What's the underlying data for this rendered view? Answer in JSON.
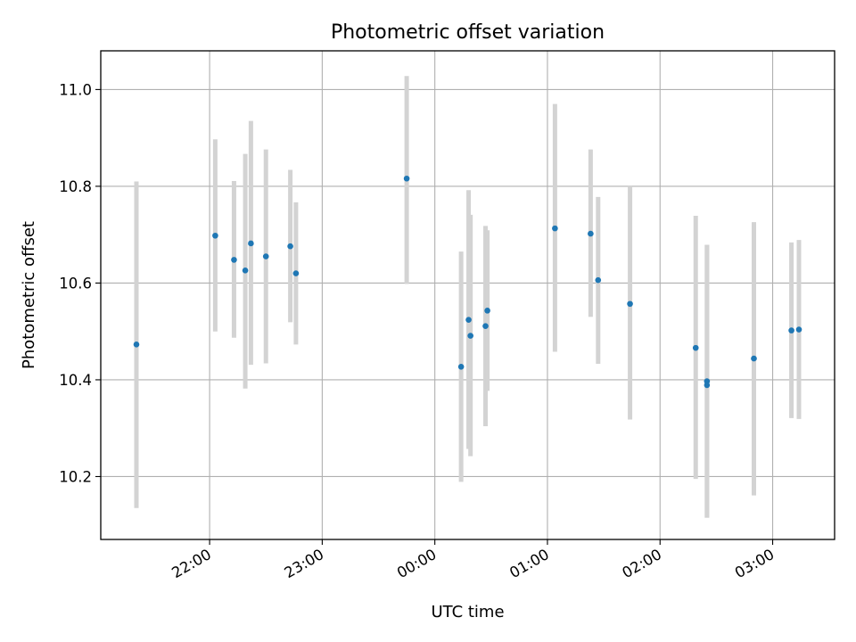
{
  "chart_data": {
    "type": "scatter",
    "title": "Photometric offset variation",
    "xlabel": "UTC time",
    "ylabel": "Photometric offset",
    "x_axis_kind": "time",
    "xlim": [
      "21:02",
      "03:33"
    ],
    "ylim": [
      10.07,
      11.08
    ],
    "x_ticks": [
      "22:00",
      "23:00",
      "00:00",
      "01:00",
      "02:00",
      "03:00"
    ],
    "y_ticks": [
      10.2,
      10.4,
      10.6,
      10.8,
      11.0
    ],
    "y_tick_labels": [
      "10.2",
      "10.4",
      "10.6",
      "10.8",
      "11.0"
    ],
    "grid": true,
    "series": [
      {
        "color": "#1f77b4",
        "errorbar_color": "#d3d3d3",
        "points": [
          {
            "x": "21:21",
            "y": 10.473,
            "ylow": 10.135,
            "yhigh": 10.81
          },
          {
            "x": "22:03",
            "y": 10.698,
            "ylow": 10.5,
            "yhigh": 10.897
          },
          {
            "x": "22:13",
            "y": 10.648,
            "ylow": 10.487,
            "yhigh": 10.811
          },
          {
            "x": "22:19",
            "y": 10.626,
            "ylow": 10.382,
            "yhigh": 10.867
          },
          {
            "x": "22:22",
            "y": 10.682,
            "ylow": 10.431,
            "yhigh": 10.935
          },
          {
            "x": "22:30",
            "y": 10.655,
            "ylow": 10.434,
            "yhigh": 10.876
          },
          {
            "x": "22:43",
            "y": 10.676,
            "ylow": 10.519,
            "yhigh": 10.834
          },
          {
            "x": "22:46",
            "y": 10.62,
            "ylow": 10.473,
            "yhigh": 10.767
          },
          {
            "x": "23:45",
            "y": 10.816,
            "ylow": 10.598,
            "yhigh": 11.028
          },
          {
            "x": "00:14",
            "y": 10.427,
            "ylow": 10.189,
            "yhigh": 10.665
          },
          {
            "x": "00:18",
            "y": 10.524,
            "ylow": 10.257,
            "yhigh": 10.792
          },
          {
            "x": "00:19",
            "y": 10.491,
            "ylow": 10.242,
            "yhigh": 10.741
          },
          {
            "x": "00:27",
            "y": 10.511,
            "ylow": 10.304,
            "yhigh": 10.718
          },
          {
            "x": "00:28",
            "y": 10.543,
            "ylow": 10.377,
            "yhigh": 10.709
          },
          {
            "x": "01:04",
            "y": 10.713,
            "ylow": 10.458,
            "yhigh": 10.97
          },
          {
            "x": "01:23",
            "y": 10.702,
            "ylow": 10.53,
            "yhigh": 10.876
          },
          {
            "x": "01:27",
            "y": 10.606,
            "ylow": 10.433,
            "yhigh": 10.778
          },
          {
            "x": "01:44",
            "y": 10.557,
            "ylow": 10.318,
            "yhigh": 10.8
          },
          {
            "x": "02:19",
            "y": 10.466,
            "ylow": 10.195,
            "yhigh": 10.739
          },
          {
            "x": "02:25",
            "y": 10.397,
            "ylow": 10.115,
            "yhigh": 10.679
          },
          {
            "x": "02:25",
            "y": 10.389,
            "ylow": 10.115,
            "yhigh": 10.679
          },
          {
            "x": "02:50",
            "y": 10.444,
            "ylow": 10.161,
            "yhigh": 10.726
          },
          {
            "x": "03:10",
            "y": 10.502,
            "ylow": 10.321,
            "yhigh": 10.684
          },
          {
            "x": "03:14",
            "y": 10.504,
            "ylow": 10.319,
            "yhigh": 10.689
          }
        ]
      }
    ]
  }
}
